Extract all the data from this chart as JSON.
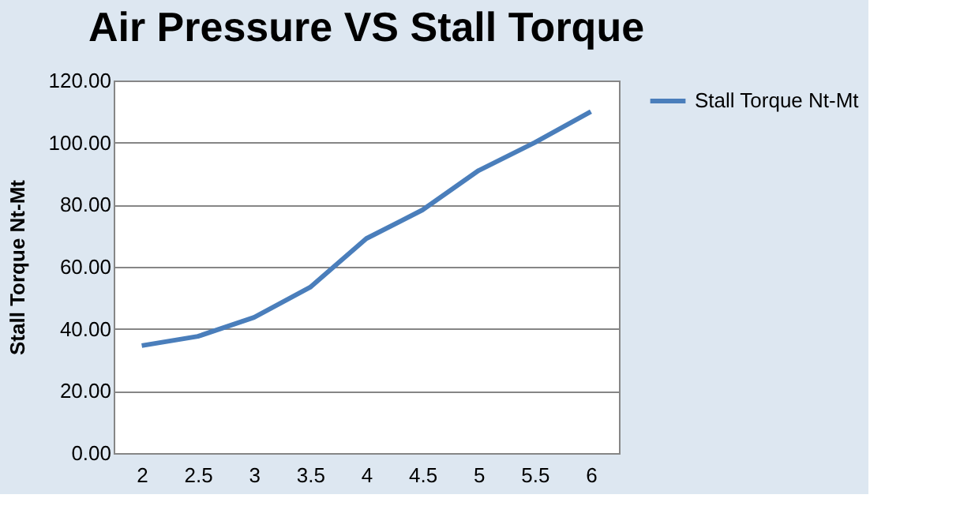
{
  "chart_data": {
    "type": "line",
    "title": "Air Pressure VS Stall Torque",
    "ylabel": "Stall Torque Nt-Mt",
    "categories": [
      "2",
      "2.5",
      "3",
      "3.5",
      "4",
      "4.5",
      "5",
      "5.5",
      "6"
    ],
    "series": [
      {
        "name": "Stall Torque Nt-Mt",
        "color": "#4a7ebb",
        "values": [
          34.6,
          37.6,
          43.7,
          53.4,
          69.1,
          78.3,
          91.0,
          100.0,
          110.0
        ]
      }
    ],
    "ylim": [
      0,
      120
    ],
    "yticks": [
      {
        "value": 0,
        "label": "0.00"
      },
      {
        "value": 20,
        "label": "20.00"
      },
      {
        "value": 40,
        "label": "40.00"
      },
      {
        "value": 60,
        "label": "60.00"
      },
      {
        "value": 80,
        "label": "80.00"
      },
      {
        "value": 100,
        "label": "100.00"
      },
      {
        "value": 120,
        "label": "120.00"
      }
    ],
    "grid": "y",
    "legend": "right",
    "marker": "none",
    "line_style": "solid"
  }
}
